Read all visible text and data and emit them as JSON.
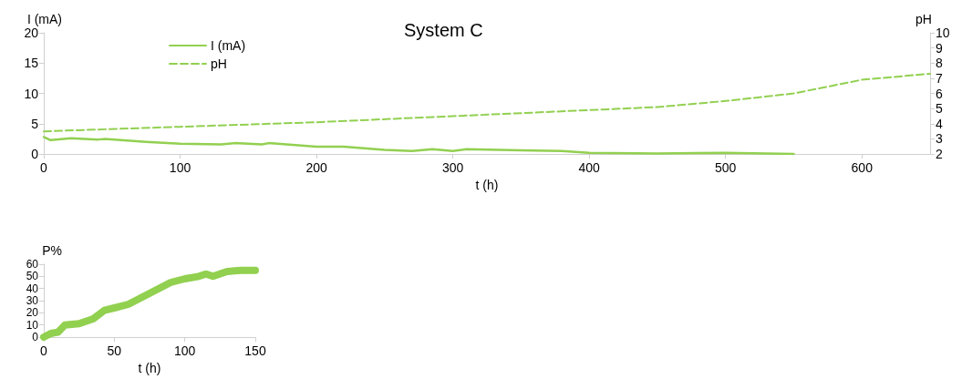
{
  "chart_data": [
    {
      "type": "line",
      "title": "System C",
      "xlabel": "t (h)",
      "ylabel": "I (mA)",
      "y2label": "pH",
      "legend": "top left",
      "grid": false,
      "marker": "none",
      "xlim": [
        0,
        650
      ],
      "xticks": [
        0,
        100,
        200,
        300,
        400,
        500,
        600
      ],
      "ylim": [
        0,
        20
      ],
      "yticks": [
        0,
        5,
        10,
        15,
        20
      ],
      "y2lim": [
        2,
        10
      ],
      "y2ticks": [
        2,
        3,
        4,
        5,
        6,
        7,
        8,
        9,
        10
      ],
      "series": [
        {
          "name": "I (mA)",
          "color": "#92d050",
          "line_style": "solid",
          "x": [
            0,
            5,
            20,
            40,
            45,
            75,
            100,
            130,
            140,
            160,
            165,
            200,
            220,
            250,
            270,
            285,
            300,
            310,
            350,
            380,
            400,
            450,
            500,
            550
          ],
          "values": [
            2.8,
            2.3,
            2.6,
            2.4,
            2.5,
            2.0,
            1.7,
            1.6,
            1.8,
            1.6,
            1.8,
            1.2,
            1.2,
            0.7,
            0.5,
            0.8,
            0.5,
            0.8,
            0.6,
            0.5,
            0.2,
            0.1,
            0.2,
            0.0
          ]
        },
        {
          "name": "pH",
          "color": "#92d050",
          "line_style": "dashed",
          "axis": "y2",
          "x": [
            0,
            100,
            200,
            300,
            400,
            450,
            500,
            550,
            600,
            650
          ],
          "values": [
            3.5,
            3.8,
            4.1,
            4.5,
            4.9,
            5.1,
            5.5,
            6.0,
            6.9,
            7.3
          ]
        }
      ]
    },
    {
      "type": "line",
      "xlabel": "t (h)",
      "ylabel": "P%",
      "grid": false,
      "marker": "none",
      "xlim": [
        0,
        150
      ],
      "xticks": [
        0,
        50,
        100,
        150
      ],
      "ylim": [
        0,
        60
      ],
      "yticks": [
        0,
        10,
        20,
        30,
        40,
        50,
        60
      ],
      "series": [
        {
          "color": "#92d050",
          "line_style": "solid",
          "x": [
            0,
            5,
            10,
            15,
            25,
            35,
            43,
            50,
            60,
            70,
            80,
            90,
            100,
            110,
            115,
            120,
            130,
            140,
            150
          ],
          "values": [
            0,
            3,
            4,
            10,
            11,
            15,
            22,
            24,
            27,
            33,
            39,
            45,
            48,
            50,
            52,
            50,
            54,
            55,
            55
          ]
        }
      ]
    }
  ]
}
